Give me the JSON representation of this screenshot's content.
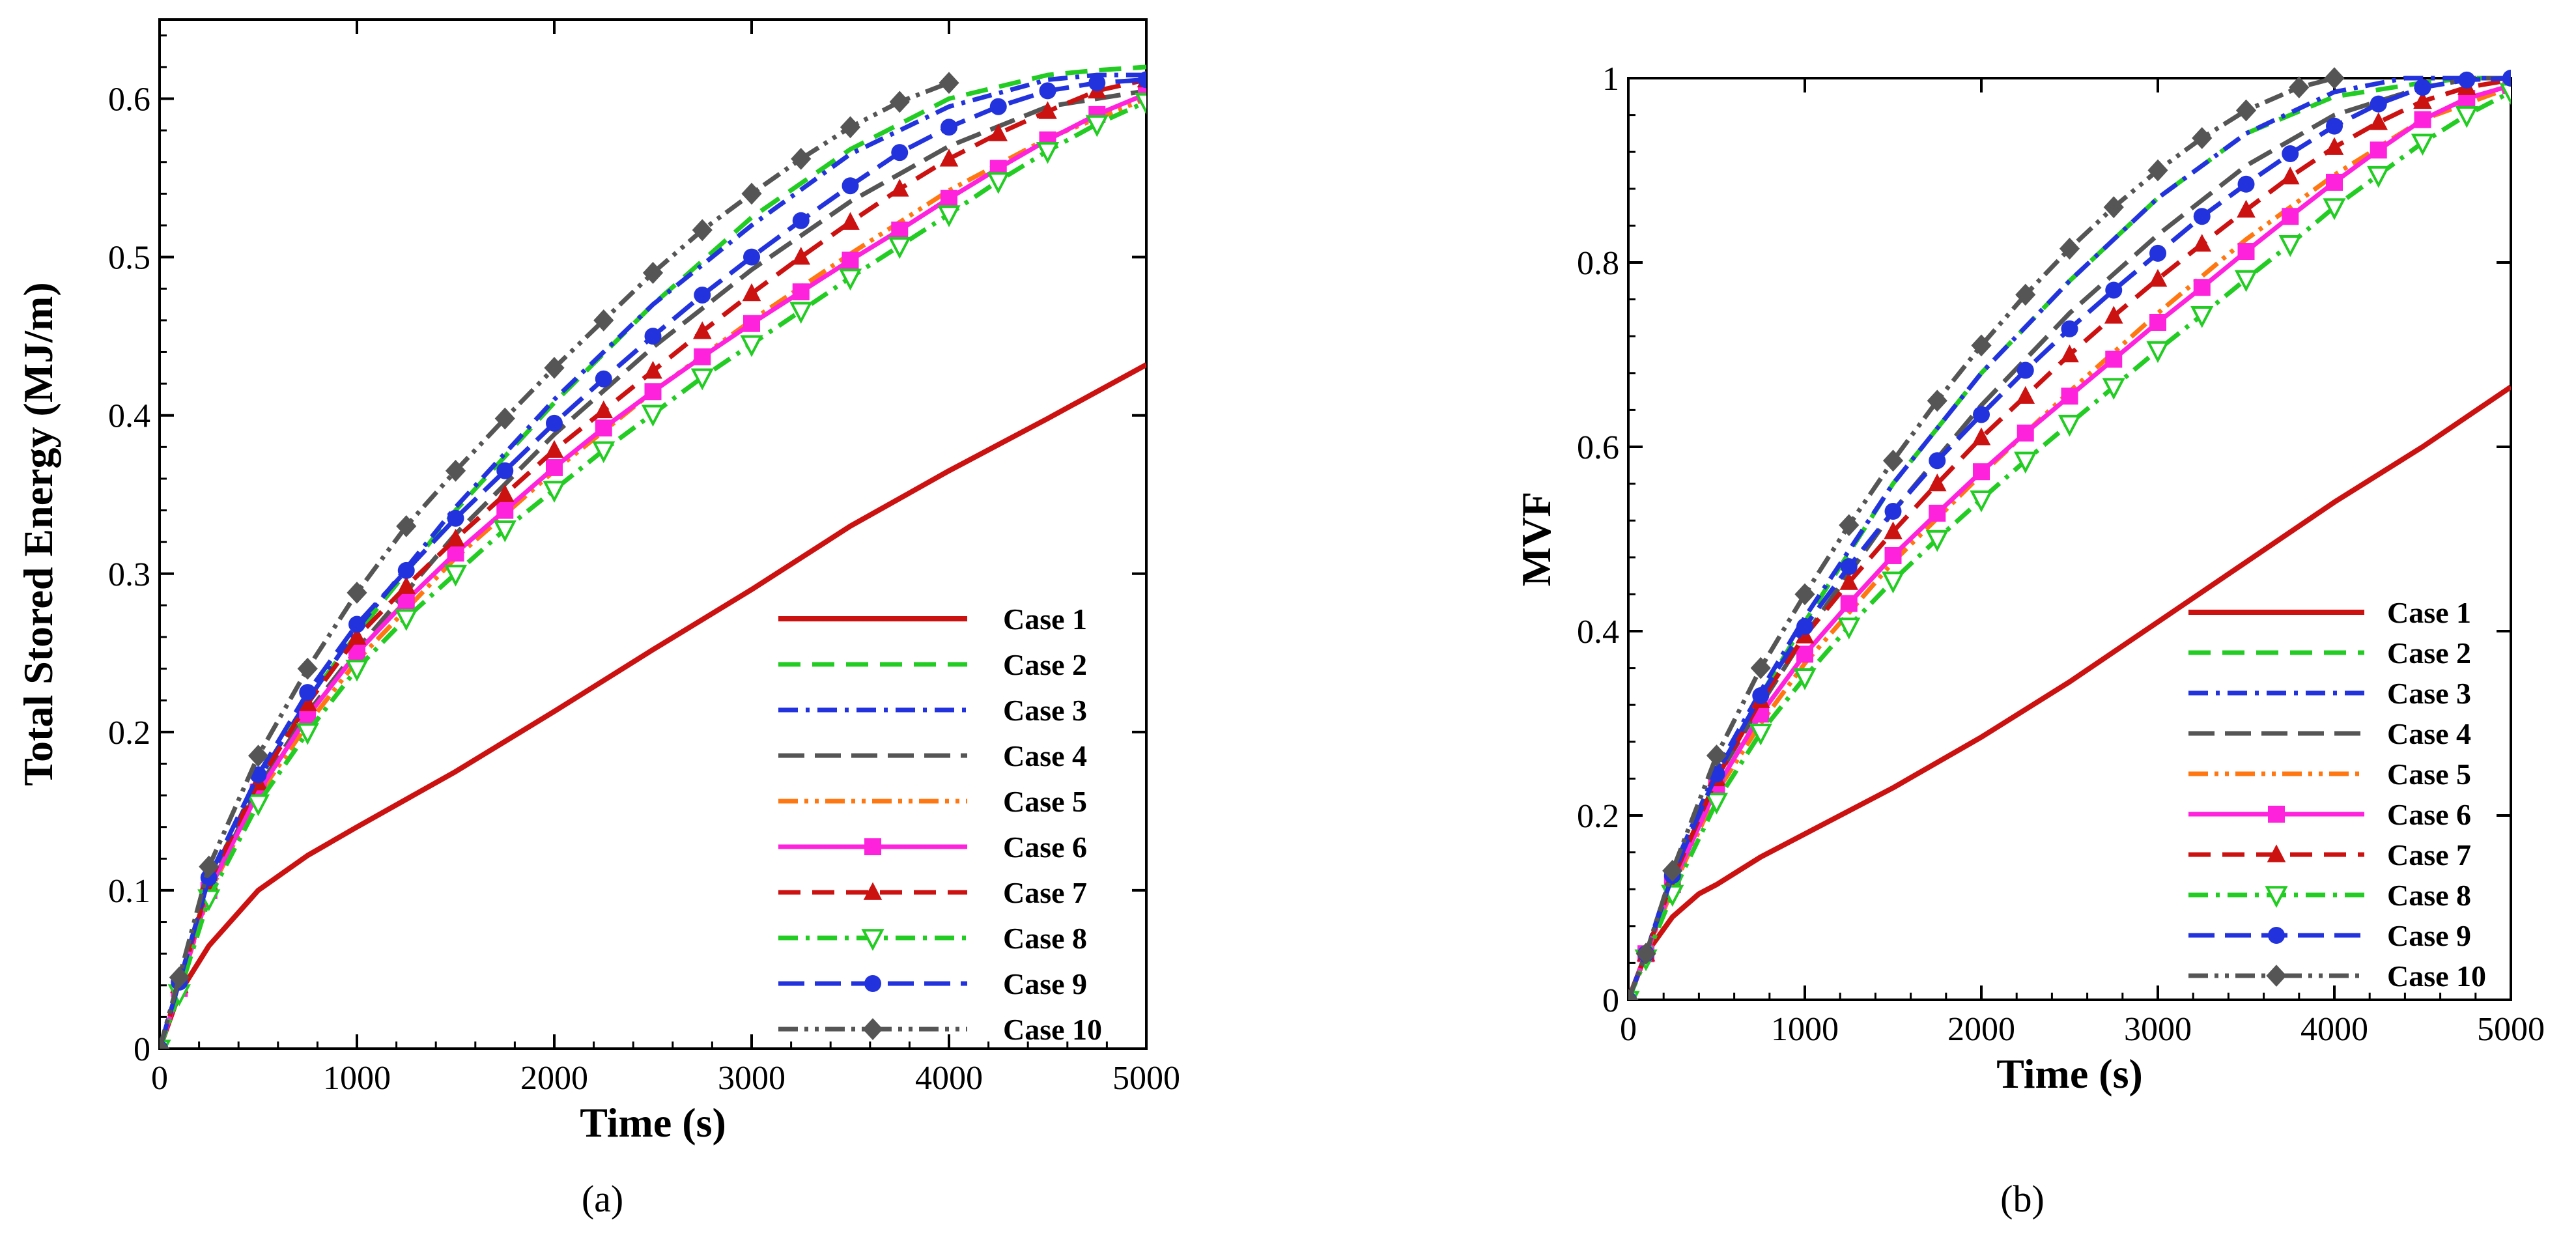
{
  "figure": {
    "panels": [
      "(a)",
      "(b)"
    ]
  },
  "series_styles": [
    {
      "name": "Case 1",
      "color": "#cc1111",
      "dash": "",
      "marker": "none",
      "width": 8
    },
    {
      "name": "Case 2",
      "color": "#22cc22",
      "dash": "34 18",
      "marker": "none",
      "width": 7
    },
    {
      "name": "Case 3",
      "color": "#2233dd",
      "dash": "30 12 6 12",
      "marker": "none",
      "width": 7
    },
    {
      "name": "Case 4",
      "color": "#555555",
      "dash": "40 16",
      "marker": "none",
      "width": 7
    },
    {
      "name": "Case 5",
      "color": "#ff7711",
      "dash": "30 10 6 10 6 10",
      "marker": "none",
      "width": 7
    },
    {
      "name": "Case 6",
      "color": "#ff22dd",
      "dash": "",
      "marker": "square",
      "width": 7
    },
    {
      "name": "Case 7",
      "color": "#cc1111",
      "dash": "34 18",
      "marker": "triangle",
      "width": 7
    },
    {
      "name": "Case 8",
      "color": "#22cc22",
      "dash": "30 12 6 12",
      "marker": "tri-down",
      "width": 7
    },
    {
      "name": "Case 9",
      "color": "#2233dd",
      "dash": "40 16",
      "marker": "circle",
      "width": 7
    },
    {
      "name": "Case 10",
      "color": "#555555",
      "dash": "30 10 6 10 6 10",
      "marker": "diamond",
      "width": 7
    }
  ],
  "chart_data": [
    {
      "type": "line",
      "panel": "(a)",
      "xlabel": "Time (s)",
      "ylabel": "Total Stored Energy (MJ/m)",
      "xlim": [
        0,
        5000
      ],
      "ylim": [
        0,
        0.65
      ],
      "xticks": [
        0,
        1000,
        2000,
        3000,
        4000,
        5000
      ],
      "yticks": [
        0,
        0.1,
        0.2,
        0.3,
        0.4,
        0.5,
        0.6
      ],
      "yticks_labels": [
        "0",
        "0.1",
        "0.2",
        "0.3",
        "0.4",
        "0.5",
        "0.6"
      ],
      "legend": "lower-right",
      "grid": false,
      "series": [
        {
          "name": "Case 1",
          "x": [
            0,
            100,
            250,
            500,
            750,
            1000,
            1500,
            2000,
            2500,
            3000,
            3500,
            4000,
            4500,
            5000
          ],
          "y": [
            0,
            0.035,
            0.065,
            0.1,
            0.122,
            0.14,
            0.175,
            0.213,
            0.252,
            0.29,
            0.33,
            0.365,
            0.398,
            0.432
          ]
        },
        {
          "name": "Case 2",
          "x": [
            0,
            100,
            250,
            500,
            750,
            1000,
            1500,
            2000,
            2500,
            3000,
            3500,
            4000,
            4500,
            4750,
            5000
          ],
          "y": [
            0,
            0.04,
            0.105,
            0.17,
            0.22,
            0.262,
            0.34,
            0.408,
            0.47,
            0.525,
            0.568,
            0.6,
            0.615,
            0.618,
            0.62
          ]
        },
        {
          "name": "Case 3",
          "x": [
            0,
            100,
            250,
            500,
            750,
            1000,
            1500,
            2000,
            2500,
            3000,
            3500,
            4000,
            4500,
            4750,
            5000
          ],
          "y": [
            0,
            0.042,
            0.105,
            0.17,
            0.22,
            0.265,
            0.342,
            0.41,
            0.47,
            0.52,
            0.565,
            0.595,
            0.612,
            0.615,
            0.615
          ]
        },
        {
          "name": "Case 4",
          "x": [
            0,
            100,
            250,
            500,
            750,
            1000,
            1500,
            2000,
            2500,
            3000,
            3500,
            4000,
            4500,
            5000
          ],
          "y": [
            0,
            0.04,
            0.1,
            0.165,
            0.212,
            0.252,
            0.325,
            0.388,
            0.443,
            0.492,
            0.535,
            0.57,
            0.595,
            0.605
          ]
        },
        {
          "name": "Case 5",
          "x": [
            0,
            100,
            250,
            500,
            750,
            1000,
            1500,
            2000,
            2500,
            3000,
            3500,
            4000,
            4500,
            5000
          ],
          "y": [
            0,
            0.038,
            0.098,
            0.16,
            0.205,
            0.245,
            0.31,
            0.365,
            0.415,
            0.46,
            0.502,
            0.542,
            0.575,
            0.6
          ]
        },
        {
          "name": "Case 6",
          "x": [
            0,
            100,
            250,
            500,
            750,
            1000,
            1250,
            1500,
            1750,
            2000,
            2250,
            2500,
            2750,
            3000,
            3250,
            3500,
            3750,
            4000,
            4250,
            4500,
            4750,
            5000
          ],
          "y": [
            0,
            0.038,
            0.1,
            0.162,
            0.21,
            0.25,
            0.283,
            0.313,
            0.34,
            0.367,
            0.392,
            0.415,
            0.437,
            0.458,
            0.478,
            0.498,
            0.517,
            0.537,
            0.556,
            0.574,
            0.59,
            0.603
          ]
        },
        {
          "name": "Case 7",
          "x": [
            0,
            100,
            250,
            500,
            750,
            1000,
            1250,
            1500,
            1750,
            2000,
            2250,
            2500,
            2750,
            3000,
            3250,
            3500,
            3750,
            4000,
            4250,
            4500,
            4750,
            5000
          ],
          "y": [
            0,
            0.04,
            0.105,
            0.168,
            0.218,
            0.26,
            0.292,
            0.322,
            0.35,
            0.378,
            0.403,
            0.428,
            0.453,
            0.477,
            0.5,
            0.522,
            0.543,
            0.562,
            0.578,
            0.592,
            0.605,
            0.612
          ]
        },
        {
          "name": "Case 8",
          "x": [
            0,
            100,
            250,
            500,
            750,
            1000,
            1250,
            1500,
            1750,
            2000,
            2250,
            2500,
            2750,
            3000,
            3250,
            3500,
            3750,
            4000,
            4250,
            4500,
            4750,
            5000
          ],
          "y": [
            0,
            0.035,
            0.095,
            0.155,
            0.2,
            0.24,
            0.272,
            0.3,
            0.328,
            0.353,
            0.378,
            0.401,
            0.424,
            0.445,
            0.466,
            0.487,
            0.507,
            0.527,
            0.548,
            0.567,
            0.584,
            0.598
          ]
        },
        {
          "name": "Case 9",
          "x": [
            0,
            100,
            250,
            500,
            750,
            1000,
            1250,
            1500,
            1750,
            2000,
            2250,
            2500,
            2750,
            3000,
            3250,
            3500,
            3750,
            4000,
            4250,
            4500,
            4750,
            5000
          ],
          "y": [
            0,
            0.042,
            0.108,
            0.173,
            0.225,
            0.268,
            0.302,
            0.335,
            0.365,
            0.395,
            0.423,
            0.45,
            0.476,
            0.5,
            0.523,
            0.545,
            0.566,
            0.582,
            0.595,
            0.605,
            0.61,
            0.612
          ]
        },
        {
          "name": "Case 10",
          "x": [
            0,
            100,
            250,
            500,
            750,
            1000,
            1250,
            1500,
            1750,
            2000,
            2250,
            2500,
            2750,
            3000,
            3250,
            3500,
            3750,
            4000
          ],
          "y": [
            0,
            0.045,
            0.115,
            0.185,
            0.24,
            0.288,
            0.33,
            0.365,
            0.398,
            0.43,
            0.46,
            0.49,
            0.517,
            0.54,
            0.562,
            0.582,
            0.598,
            0.61
          ]
        }
      ]
    },
    {
      "type": "line",
      "panel": "(b)",
      "xlabel": "Time (s)",
      "ylabel": "MVF",
      "xlim": [
        0,
        5000
      ],
      "ylim": [
        0,
        1
      ],
      "xticks": [
        0,
        1000,
        2000,
        3000,
        4000,
        5000
      ],
      "yticks": [
        0,
        0.2,
        0.4,
        0.6,
        0.8,
        1
      ],
      "yticks_labels": [
        "0",
        "0.2",
        "0.4",
        "0.6",
        "0.8",
        "1"
      ],
      "legend": "lower-right",
      "grid": false,
      "series": [
        {
          "name": "Case 1",
          "x": [
            0,
            100,
            250,
            400,
            500,
            750,
            1000,
            1500,
            2000,
            2500,
            3000,
            3500,
            4000,
            4500,
            5000
          ],
          "y": [
            0,
            0.05,
            0.09,
            0.115,
            0.125,
            0.155,
            0.18,
            0.23,
            0.285,
            0.345,
            0.41,
            0.475,
            0.54,
            0.6,
            0.665
          ]
        },
        {
          "name": "Case 2",
          "x": [
            0,
            100,
            250,
            500,
            750,
            1000,
            1500,
            2000,
            2500,
            3000,
            3500,
            4000,
            4500,
            4750,
            5000
          ],
          "y": [
            0,
            0.05,
            0.13,
            0.24,
            0.33,
            0.41,
            0.56,
            0.68,
            0.78,
            0.87,
            0.94,
            0.98,
            0.995,
            1,
            1
          ]
        },
        {
          "name": "Case 3",
          "x": [
            0,
            100,
            250,
            500,
            750,
            1000,
            1500,
            2000,
            2500,
            3000,
            3500,
            4000,
            4400,
            4700,
            5000
          ],
          "y": [
            0,
            0.05,
            0.14,
            0.25,
            0.335,
            0.415,
            0.56,
            0.68,
            0.78,
            0.87,
            0.94,
            0.985,
            1,
            1,
            1
          ]
        },
        {
          "name": "Case 4",
          "x": [
            0,
            100,
            250,
            500,
            750,
            1000,
            1500,
            2000,
            2500,
            3000,
            3500,
            4000,
            4500,
            4800,
            5000
          ],
          "y": [
            0,
            0.05,
            0.13,
            0.24,
            0.32,
            0.395,
            0.53,
            0.645,
            0.745,
            0.83,
            0.905,
            0.96,
            0.99,
            1,
            1
          ]
        },
        {
          "name": "Case 5",
          "x": [
            0,
            100,
            250,
            500,
            750,
            1000,
            1500,
            2000,
            2500,
            3000,
            3500,
            4000,
            4500,
            5000
          ],
          "y": [
            0,
            0.05,
            0.12,
            0.225,
            0.3,
            0.365,
            0.475,
            0.57,
            0.66,
            0.745,
            0.825,
            0.895,
            0.955,
            0.99
          ]
        },
        {
          "name": "Case 6",
          "x": [
            0,
            100,
            250,
            500,
            750,
            1000,
            1250,
            1500,
            1750,
            2000,
            2250,
            2500,
            2750,
            3000,
            3250,
            3500,
            3750,
            4000,
            4250,
            4500,
            4750,
            5000
          ],
          "y": [
            0,
            0.05,
            0.125,
            0.23,
            0.31,
            0.375,
            0.43,
            0.482,
            0.528,
            0.573,
            0.615,
            0.655,
            0.695,
            0.735,
            0.773,
            0.812,
            0.85,
            0.887,
            0.922,
            0.955,
            0.978,
            0.992
          ]
        },
        {
          "name": "Case 7",
          "x": [
            0,
            100,
            250,
            500,
            750,
            1000,
            1250,
            1500,
            1750,
            2000,
            2250,
            2500,
            2750,
            3000,
            3250,
            3500,
            3750,
            4000,
            4250,
            4500,
            4750,
            5000
          ],
          "y": [
            0,
            0.05,
            0.13,
            0.24,
            0.325,
            0.395,
            0.453,
            0.508,
            0.56,
            0.61,
            0.655,
            0.7,
            0.742,
            0.782,
            0.82,
            0.857,
            0.893,
            0.925,
            0.952,
            0.975,
            0.99,
            0.998
          ]
        },
        {
          "name": "Case 8",
          "x": [
            0,
            100,
            250,
            500,
            750,
            1000,
            1250,
            1500,
            1750,
            2000,
            2250,
            2500,
            2750,
            3000,
            3250,
            3500,
            3750,
            4000,
            4250,
            4500,
            4750,
            5000
          ],
          "y": [
            0,
            0.045,
            0.115,
            0.215,
            0.29,
            0.35,
            0.405,
            0.455,
            0.5,
            0.543,
            0.585,
            0.625,
            0.665,
            0.705,
            0.743,
            0.782,
            0.82,
            0.86,
            0.895,
            0.93,
            0.96,
            0.985
          ]
        },
        {
          "name": "Case 9",
          "x": [
            0,
            100,
            250,
            500,
            750,
            1000,
            1250,
            1500,
            1750,
            2000,
            2250,
            2500,
            2750,
            3000,
            3250,
            3500,
            3750,
            4000,
            4250,
            4500,
            4750,
            5000
          ],
          "y": [
            0,
            0.05,
            0.135,
            0.245,
            0.33,
            0.405,
            0.47,
            0.53,
            0.585,
            0.635,
            0.683,
            0.728,
            0.77,
            0.81,
            0.85,
            0.885,
            0.918,
            0.948,
            0.972,
            0.99,
            0.998,
            1
          ]
        },
        {
          "name": "Case 10",
          "x": [
            0,
            100,
            250,
            500,
            750,
            1000,
            1250,
            1500,
            1750,
            2000,
            2250,
            2500,
            2750,
            3000,
            3250,
            3500,
            3800,
            4000
          ],
          "y": [
            0,
            0.05,
            0.14,
            0.265,
            0.36,
            0.44,
            0.515,
            0.585,
            0.65,
            0.71,
            0.765,
            0.815,
            0.86,
            0.9,
            0.935,
            0.965,
            0.99,
            1
          ]
        }
      ]
    }
  ]
}
